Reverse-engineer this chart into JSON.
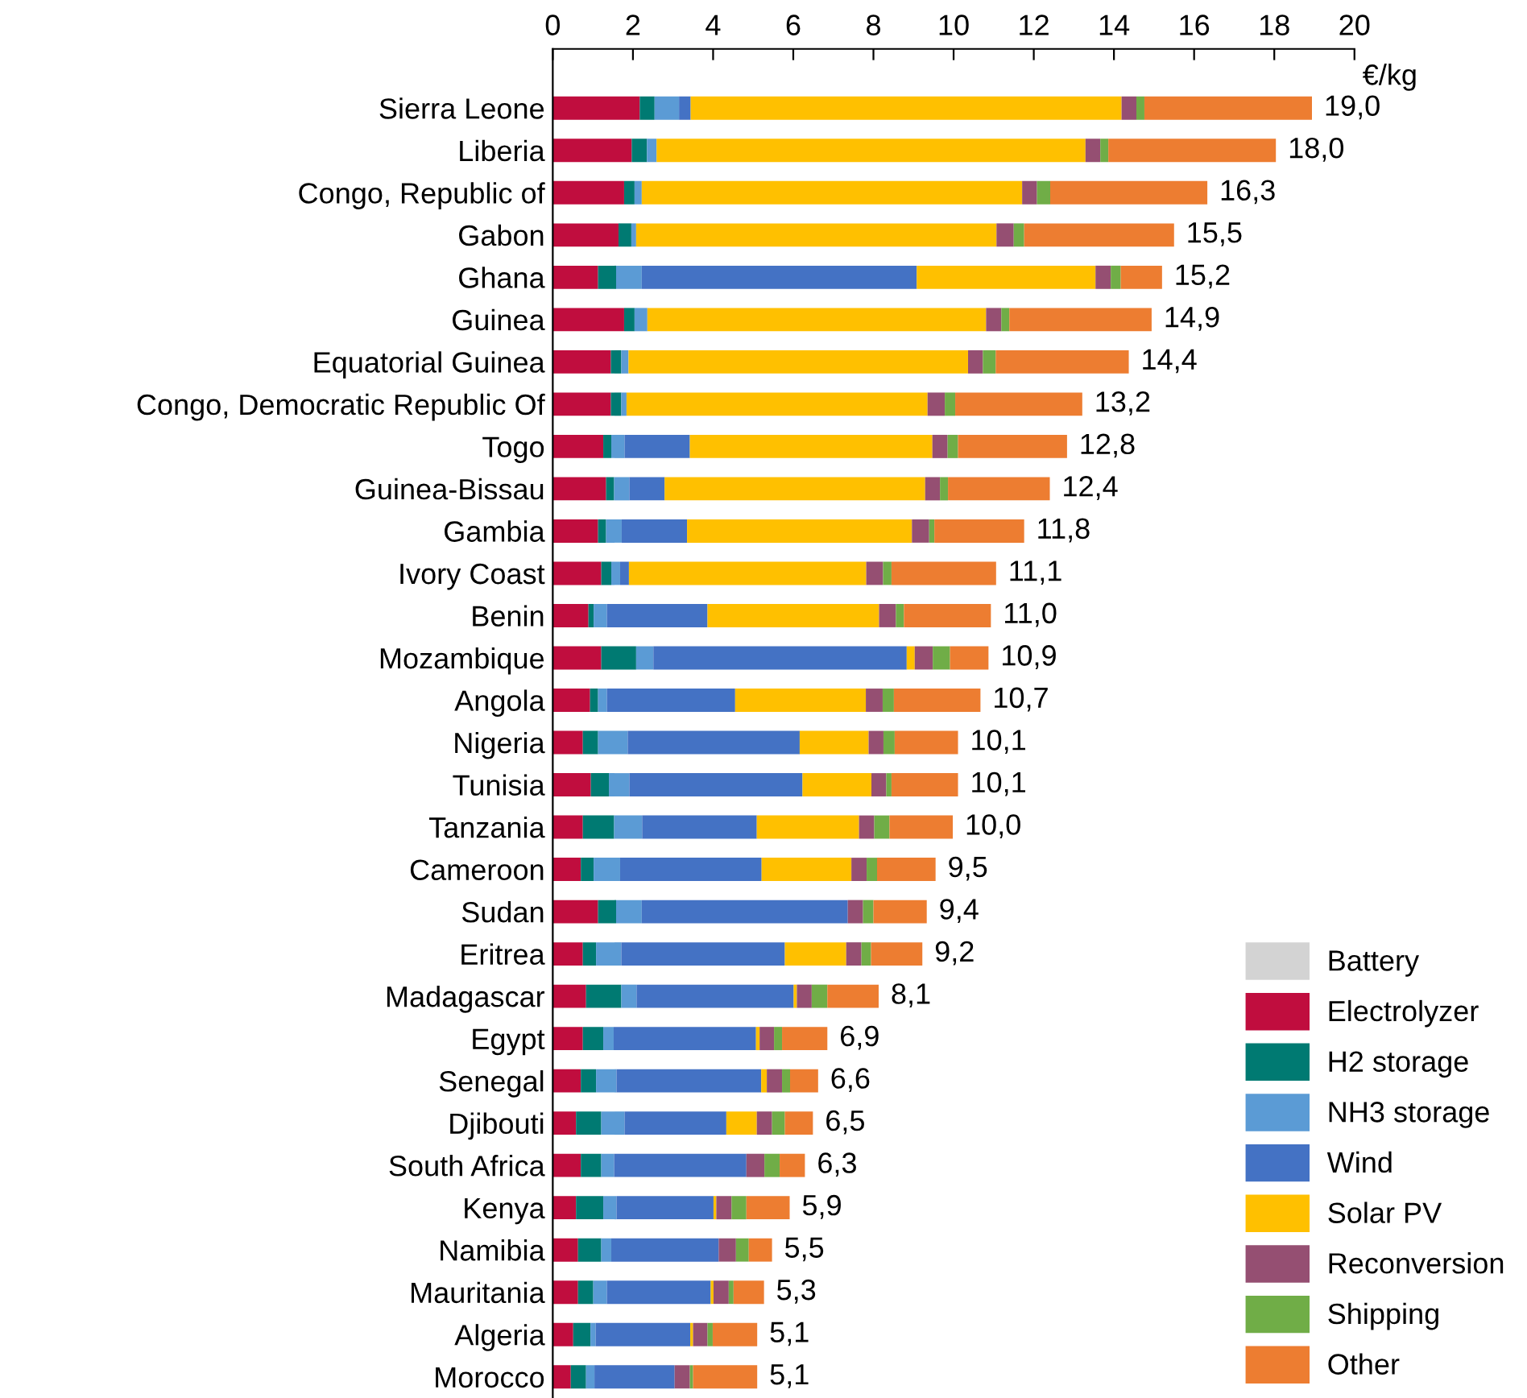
{
  "chart_data": {
    "type": "bar",
    "orientation": "horizontal",
    "stacked": true,
    "xlabel": "€/kg",
    "xlim": [
      0,
      20
    ],
    "xticks": [
      0,
      2,
      4,
      6,
      8,
      10,
      12,
      14,
      16,
      18,
      20
    ],
    "grid": false,
    "legend": "bottom right",
    "categories": [
      "Sierra Leone",
      "Liberia",
      "Congo, Republic of",
      "Gabon",
      "Ghana",
      "Guinea",
      "Equatorial Guinea",
      "Congo, Democratic Republic Of",
      "Togo",
      "Guinea-Bissau",
      "Gambia",
      "Ivory Coast",
      "Benin",
      "Mozambique",
      "Angola",
      "Nigeria",
      "Tunisia",
      "Tanzania",
      "Cameroon",
      "Sudan",
      "Eritrea",
      "Madagascar",
      "Egypt",
      "Senegal",
      "Djibouti",
      "South Africa",
      "Kenya",
      "Namibia",
      "Mauritania",
      "Algeria",
      "Morocco"
    ],
    "series": [
      {
        "name": "Battery",
        "color": "#d3d3d3",
        "values": [
          0,
          0,
          0,
          0,
          0,
          0,
          0,
          0,
          0,
          0,
          0,
          0,
          0,
          0,
          0,
          0,
          0,
          0,
          0,
          0,
          0,
          0,
          0,
          0,
          0,
          0,
          0,
          0,
          0,
          0,
          0
        ]
      },
      {
        "name": "Electrolyzer",
        "color": "#c00d3e",
        "values": [
          2.17,
          1.97,
          1.78,
          1.64,
          1.13,
          1.78,
          1.45,
          1.45,
          1.26,
          1.33,
          1.13,
          1.21,
          0.89,
          1.21,
          0.93,
          0.75,
          0.95,
          0.75,
          0.7,
          1.13,
          0.75,
          0.83,
          0.75,
          0.7,
          0.58,
          0.7,
          0.58,
          0.63,
          0.63,
          0.51,
          0.45
        ]
      },
      {
        "name": "H2 storage",
        "color": "#007a72",
        "values": [
          0.37,
          0.38,
          0.26,
          0.32,
          0.45,
          0.26,
          0.26,
          0.26,
          0.2,
          0.2,
          0.2,
          0.25,
          0.13,
          0.87,
          0.2,
          0.38,
          0.45,
          0.78,
          0.32,
          0.45,
          0.33,
          0.88,
          0.51,
          0.38,
          0.63,
          0.51,
          0.68,
          0.58,
          0.38,
          0.43,
          0.38
        ]
      },
      {
        "name": "NH3 storage",
        "color": "#5b9bd5",
        "values": [
          0.61,
          0.24,
          0.18,
          0.12,
          0.64,
          0.32,
          0.18,
          0.13,
          0.33,
          0.38,
          0.39,
          0.22,
          0.33,
          0.43,
          0.22,
          0.74,
          0.51,
          0.7,
          0.66,
          0.64,
          0.63,
          0.38,
          0.26,
          0.51,
          0.58,
          0.32,
          0.33,
          0.25,
          0.34,
          0.13,
          0.21
        ]
      },
      {
        "name": "Wind",
        "color": "#4472c4",
        "values": [
          0.29,
          0,
          0,
          0,
          6.86,
          0,
          0,
          0,
          1.63,
          0.88,
          1.63,
          0.22,
          2.51,
          6.32,
          3.2,
          4.29,
          4.32,
          2.86,
          3.53,
          5.14,
          4.08,
          3.92,
          3.55,
          3.61,
          2.54,
          3.3,
          2.42,
          2.68,
          2.59,
          2.36,
          2.0
        ]
      },
      {
        "name": "Solar PV",
        "color": "#ffc000",
        "values": [
          10.75,
          10.7,
          9.49,
          8.99,
          4.46,
          8.45,
          8.47,
          7.51,
          6.05,
          6.5,
          5.61,
          5.92,
          4.28,
          0.2,
          3.26,
          1.72,
          1.72,
          2.55,
          2.24,
          0,
          1.53,
          0.08,
          0.09,
          0.14,
          0.76,
          0,
          0.07,
          0,
          0.07,
          0.07,
          0
        ]
      },
      {
        "name": "Reconversion",
        "color": "#954f72",
        "values": [
          0.37,
          0.37,
          0.37,
          0.43,
          0.38,
          0.38,
          0.37,
          0.43,
          0.38,
          0.37,
          0.43,
          0.42,
          0.42,
          0.45,
          0.42,
          0.37,
          0.37,
          0.38,
          0.38,
          0.38,
          0.38,
          0.37,
          0.36,
          0.38,
          0.38,
          0.45,
          0.38,
          0.43,
          0.38,
          0.36,
          0.38
        ]
      },
      {
        "name": "Shipping",
        "color": "#70ad47",
        "values": [
          0.2,
          0.2,
          0.33,
          0.26,
          0.25,
          0.2,
          0.32,
          0.26,
          0.26,
          0.2,
          0.13,
          0.21,
          0.2,
          0.43,
          0.28,
          0.28,
          0.13,
          0.38,
          0.26,
          0.26,
          0.24,
          0.39,
          0.2,
          0.2,
          0.32,
          0.38,
          0.37,
          0.32,
          0.12,
          0.13,
          0.08
        ]
      },
      {
        "name": "Other",
        "color": "#ed7d31",
        "values": [
          4.18,
          4.18,
          3.92,
          3.74,
          1.03,
          3.55,
          3.32,
          3.17,
          2.72,
          2.54,
          2.24,
          2.61,
          2.17,
          0.96,
          2.16,
          1.58,
          1.66,
          1.58,
          1.46,
          1.33,
          1.28,
          1.28,
          1.13,
          0.7,
          0.7,
          0.63,
          1.08,
          0.58,
          0.76,
          1.11,
          1.6
        ]
      }
    ],
    "totals": [
      "19,0",
      "18,0",
      "16,3",
      "15,5",
      "15,2",
      "14,9",
      "14,4",
      "13,2",
      "12,8",
      "12,4",
      "11,8",
      "11,1",
      "11,0",
      "10,9",
      "10,7",
      "10,1",
      "10,1",
      "10,0",
      "9,5",
      "9,4",
      "9,2",
      "8,1",
      "6,9",
      "6,6",
      "6,5",
      "6,3",
      "5,9",
      "5,5",
      "5,3",
      "5,1",
      "5,1"
    ]
  }
}
